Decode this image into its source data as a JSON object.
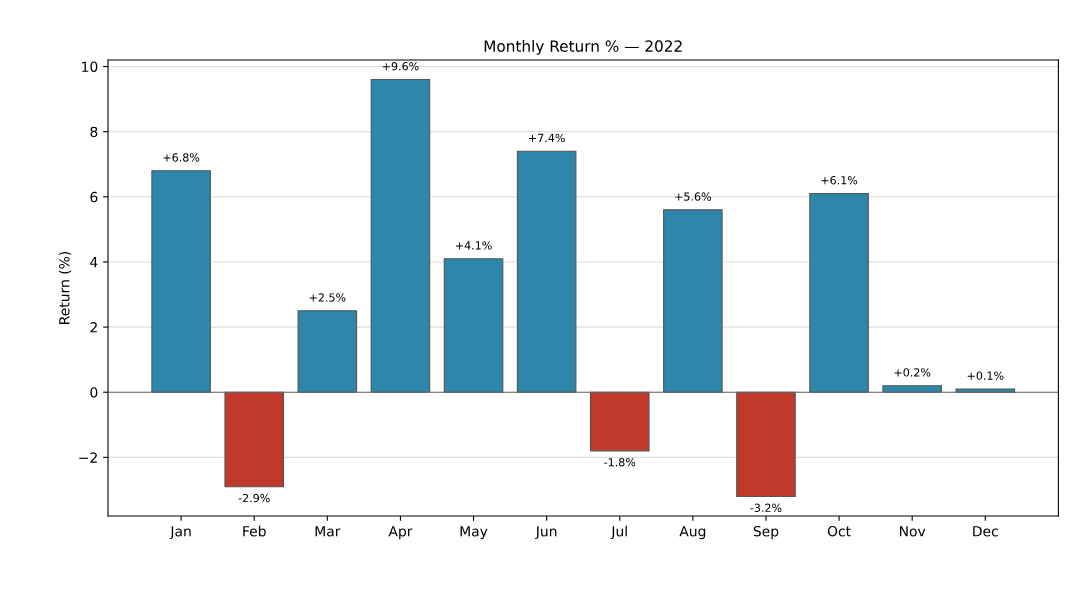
{
  "chart_data": {
    "type": "bar",
    "title": "Monthly Return % — 2022",
    "ylabel": "Return (%)",
    "categories": [
      "Jan",
      "Feb",
      "Mar",
      "Apr",
      "May",
      "Jun",
      "Jul",
      "Aug",
      "Sep",
      "Oct",
      "Nov",
      "Dec"
    ],
    "values": [
      6.8,
      -2.9,
      2.5,
      9.6,
      4.1,
      7.4,
      -1.8,
      5.6,
      -3.2,
      6.1,
      0.2,
      0.1
    ],
    "colors": [
      "#2e86ab",
      "#c0392b",
      "#2e86ab",
      "#2e86ab",
      "#2e86ab",
      "#2e86ab",
      "#c0392b",
      "#2e86ab",
      "#c0392b",
      "#2e86ab",
      "#2e86ab",
      "#2e86ab"
    ],
    "value_labels": [
      "+6.8%",
      "-2.9%",
      "+2.5%",
      "+9.6%",
      "+4.1%",
      "+7.4%",
      "-1.8%",
      "+5.6%",
      "-3.2%",
      "+6.1%",
      "+0.2%",
      "+0.1%"
    ],
    "ylim": [
      -3.8,
      10.2
    ],
    "yticks": [
      {
        "value": -2,
        "label": "−2"
      },
      0,
      2,
      4,
      6,
      8,
      10
    ],
    "ref_lines": [
      {
        "axis": "y",
        "value": 0,
        "color": "#666666"
      }
    ],
    "grid": "y",
    "legend": false
  }
}
